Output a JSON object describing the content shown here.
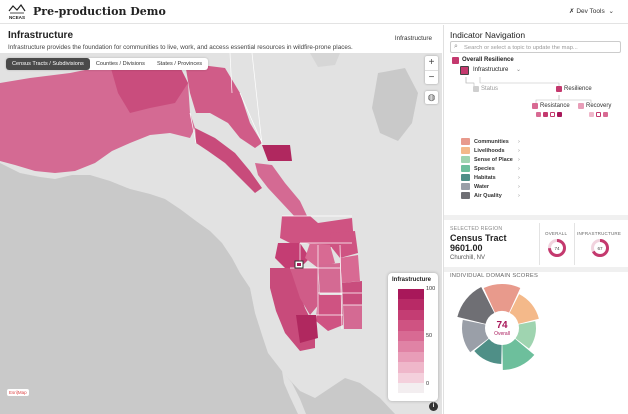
{
  "app": {
    "logo_text": "NCEAS",
    "title": "Pre-production Demo",
    "devtools_label": "Dev Tools"
  },
  "map_panel": {
    "title": "Infrastructure",
    "subtitle": "Infrastructure provides the foundation for communities to live, work, and access essential resources in wildfire-prone places.",
    "tag": "Infrastructure",
    "tabs": [
      {
        "label": "Census Tracts / Subdivisions",
        "active": true
      },
      {
        "label": "Counties / Divisions",
        "active": false
      },
      {
        "label": "States / Provinces",
        "active": false
      }
    ],
    "basemap_credit": "Esri|Map",
    "legend": {
      "title": "Infrastructure",
      "max_label": "100",
      "mid_label": "50",
      "min_label": "0",
      "colors": [
        "#a8185a",
        "#b82a66",
        "#c43d73",
        "#cf5382",
        "#d86a93",
        "#e083a5",
        "#e89db8",
        "#efb7ca",
        "#f4d0dc",
        "#f3eef0"
      ]
    }
  },
  "nav": {
    "title": "Indicator Navigation",
    "search_placeholder": "Search or select a topic to update the map...",
    "overall_label": "Overall Resilience",
    "infrastructure_label": "Infrastructure",
    "status_label": "Status",
    "resilience_label": "Resilience",
    "resistance_label": "Resistance",
    "recovery_label": "Recovery",
    "domains": [
      {
        "name": "Communities",
        "color": "#e89a8c"
      },
      {
        "name": "Livelihoods",
        "color": "#f4b98a"
      },
      {
        "name": "Sense of Place",
        "color": "#9fd4b0"
      },
      {
        "name": "Species",
        "color": "#6dbf9c"
      },
      {
        "name": "Habitats",
        "color": "#4f8f87"
      },
      {
        "name": "Water",
        "color": "#9a9fa8"
      },
      {
        "name": "Air Quality",
        "color": "#6f6f74"
      }
    ]
  },
  "selected": {
    "label": "SELECTED REGION",
    "name_line1": "Census Tract",
    "name_line2": "9601.00",
    "location": "Churchill, NV",
    "overall_label": "OVERALL",
    "overall_value": 74,
    "overall_text": "74",
    "infra_label": "INFRASTRUCTURE",
    "infra_value": 67,
    "infra_text": "67"
  },
  "domain_scores": {
    "title": "INDIVIDUAL DOMAIN SCORES",
    "center_value": "74",
    "center_label": "Overall"
  },
  "colors": {
    "accent": "#c4396e",
    "ocean": "#c9c9c9",
    "land": "#e2e2e2"
  }
}
